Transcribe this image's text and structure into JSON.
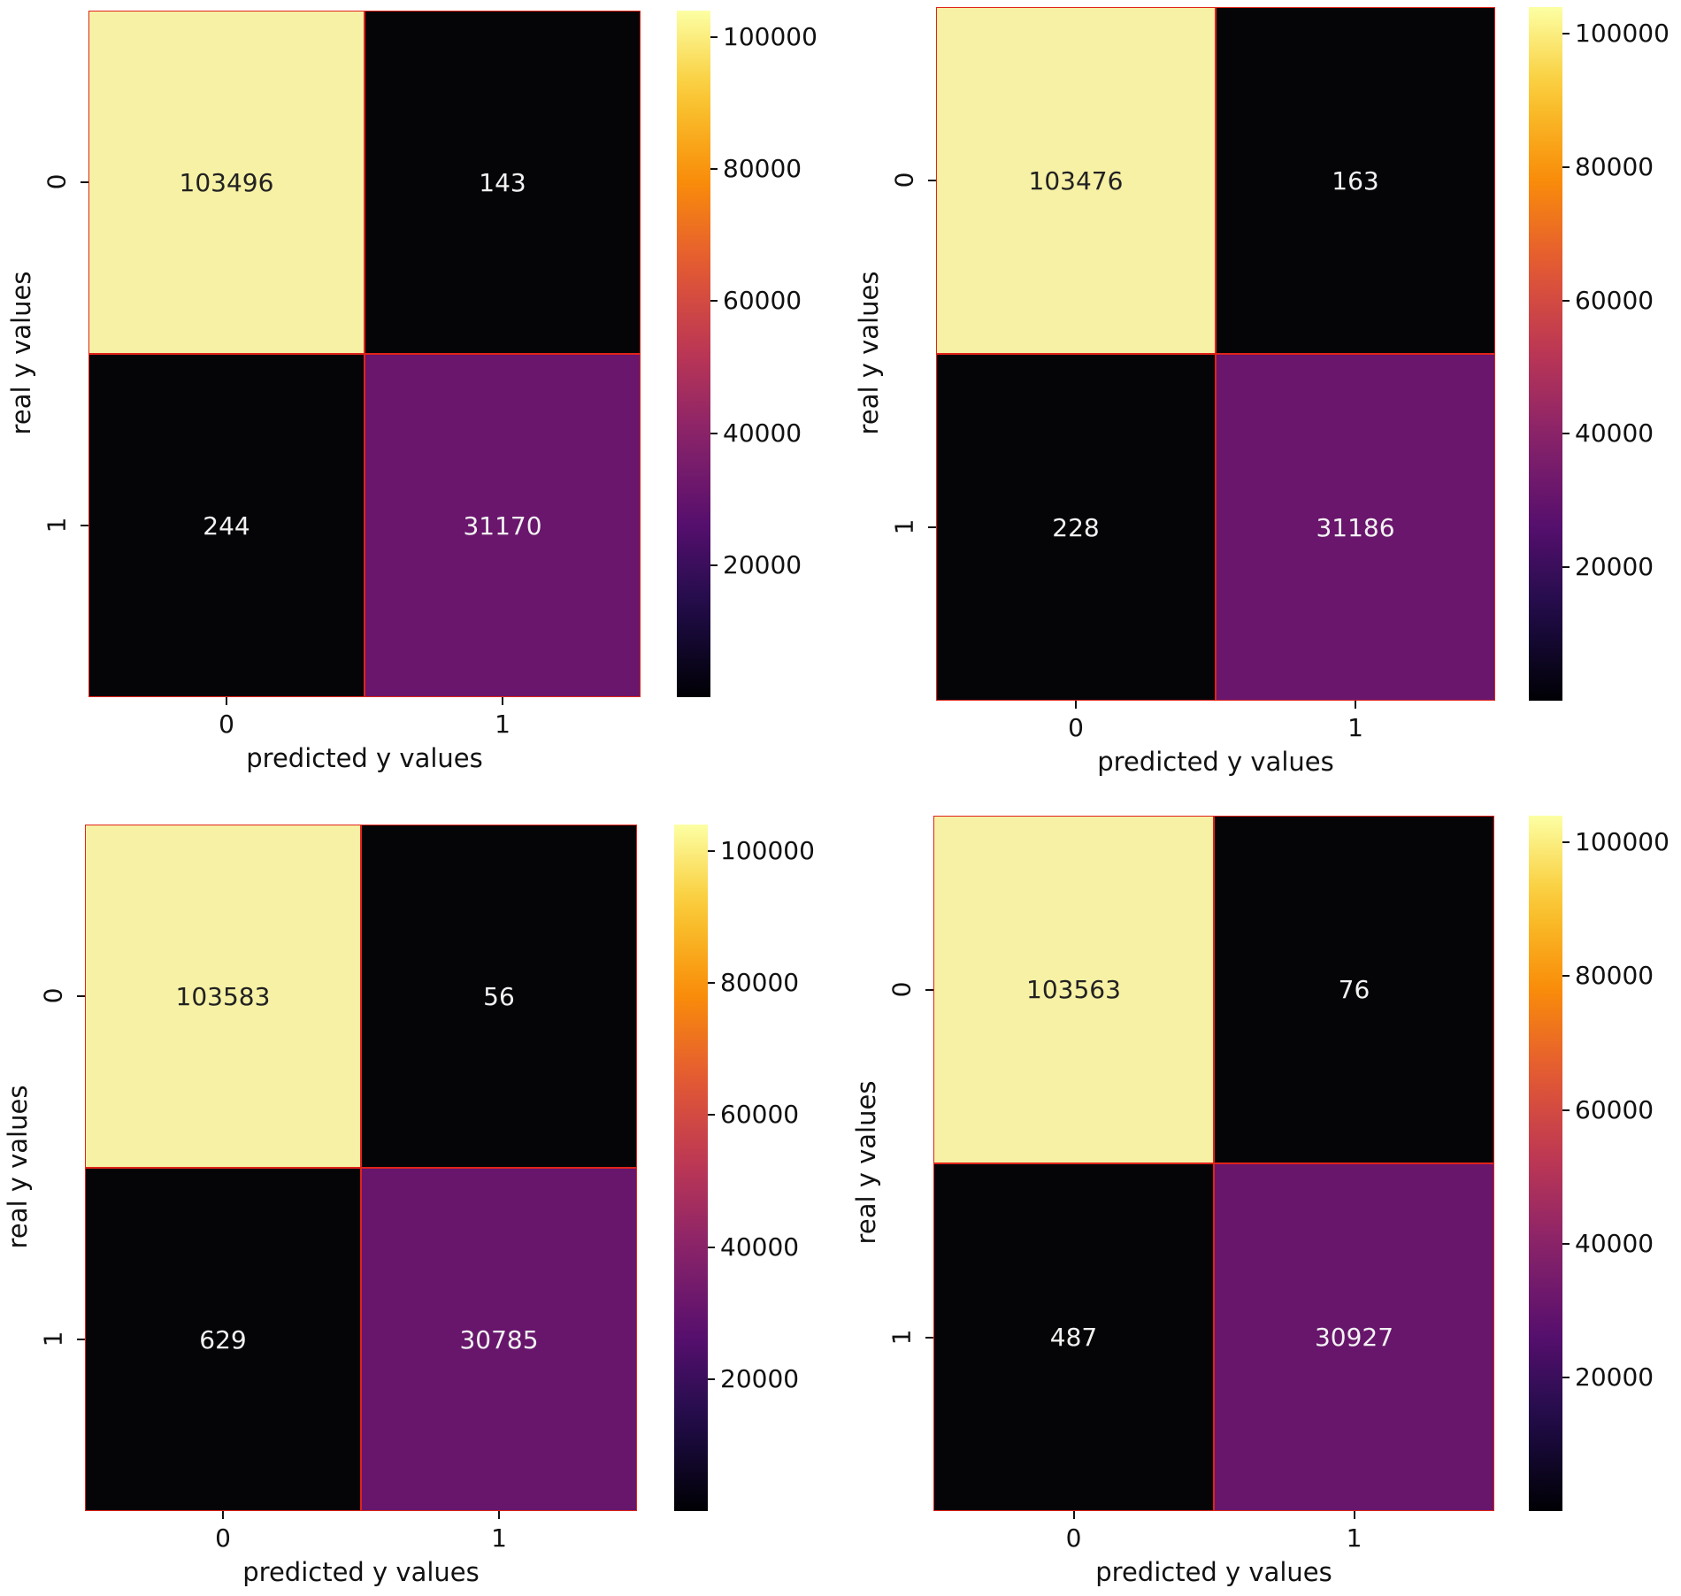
{
  "chart_data": [
    {
      "type": "heatmap",
      "title": "",
      "xlabel": "predicted y values",
      "ylabel": "real y values",
      "x_ticks": [
        "0",
        "1"
      ],
      "y_ticks": [
        "0",
        "1"
      ],
      "matrix": [
        [
          "103496",
          "143"
        ],
        [
          "244",
          "31170"
        ]
      ],
      "colorbar": {
        "range": [
          0,
          104000
        ],
        "ticks": [
          "20000",
          "40000",
          "60000",
          "80000",
          "100000"
        ],
        "colormap": "inferno"
      }
    },
    {
      "type": "heatmap",
      "title": "",
      "xlabel": "predicted y values",
      "ylabel": "real y values",
      "x_ticks": [
        "0",
        "1"
      ],
      "y_ticks": [
        "0",
        "1"
      ],
      "matrix": [
        [
          "103476",
          "163"
        ],
        [
          "228",
          "31186"
        ]
      ],
      "colorbar": {
        "range": [
          0,
          104000
        ],
        "ticks": [
          "20000",
          "40000",
          "60000",
          "80000",
          "100000"
        ],
        "colormap": "inferno"
      }
    },
    {
      "type": "heatmap",
      "title": "",
      "xlabel": "predicted y values",
      "ylabel": "real y values",
      "x_ticks": [
        "0",
        "1"
      ],
      "y_ticks": [
        "0",
        "1"
      ],
      "matrix": [
        [
          "103583",
          "56"
        ],
        [
          "629",
          "30785"
        ]
      ],
      "colorbar": {
        "range": [
          0,
          104000
        ],
        "ticks": [
          "20000",
          "40000",
          "60000",
          "80000",
          "100000"
        ],
        "colormap": "inferno"
      }
    },
    {
      "type": "heatmap",
      "title": "",
      "xlabel": "predicted y values",
      "ylabel": "real y values",
      "x_ticks": [
        "0",
        "1"
      ],
      "y_ticks": [
        "0",
        "1"
      ],
      "matrix": [
        [
          "103563",
          "76"
        ],
        [
          "487",
          "30927"
        ]
      ],
      "colorbar": {
        "range": [
          0,
          104000
        ],
        "ticks": [
          "20000",
          "40000",
          "60000",
          "80000",
          "100000"
        ],
        "colormap": "inferno"
      }
    }
  ],
  "colors": {
    "cell_border": "#e0241b",
    "text_light": "#f2f2f2",
    "text_dark": "#222222"
  }
}
